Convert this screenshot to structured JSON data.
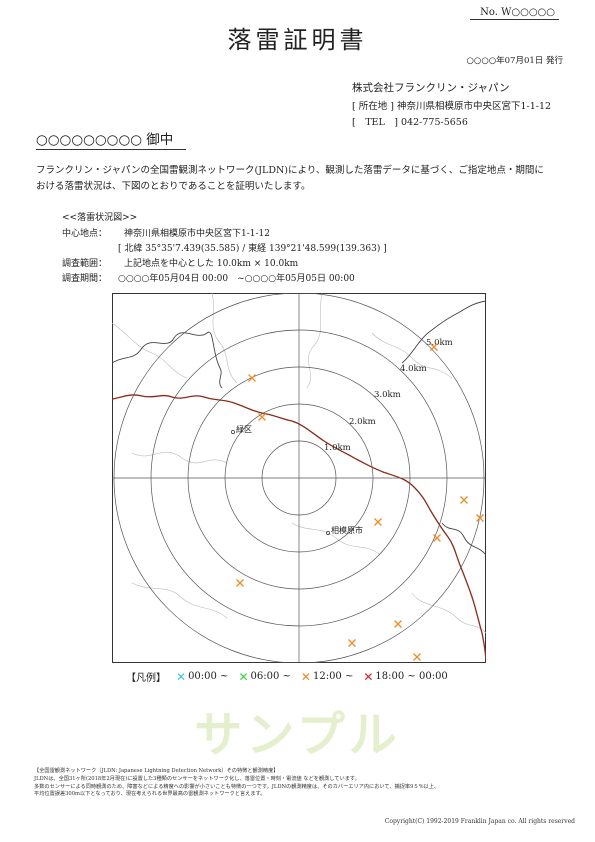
{
  "header": {
    "doc_number": "No. W○○○○○",
    "title": "落雷証明書",
    "issued": "○○○○年07月01日 発行",
    "company": "株式会社フランクリン・ジャパン",
    "address": "[ 所在地 ] 神奈川県相模原市中央区宮下1-1-12",
    "tel": "[　TEL　] 042-775-5656",
    "addressee": "○○○○○○○○○ 御中"
  },
  "body": {
    "line1": "フランクリン・ジャパンの全国雷観測ネットワーク(JLDN)により、観測した落雷データに基づく、ご指定地点・期間に",
    "line2": "おける落雷状況は、下図のとおりであることを証明いたします。"
  },
  "survey": {
    "section_title": "<<落雷状況図>>",
    "center_label": "中心地点：",
    "center_value": "神奈川県相模原市中央区宮下1-1-12",
    "coords": "[ 北緯 35°35'7.439(35.585) / 東経 139°21'48.599(139.363) ]",
    "range_label": "調査範囲：",
    "range_value": "上記地点を中心とした 10.0km × 10.0km",
    "period_label": "調査期間：",
    "period_value": "○○○○年05月04日 00:00　~○○○○年05月05日 00:00"
  },
  "map": {
    "ring_labels": [
      "1.0km",
      "2.0km",
      "3.0km",
      "4.0km",
      "5.0km"
    ],
    "places": [
      "緑区",
      "相模原市"
    ],
    "strike_color": "#f08a24"
  },
  "legend": {
    "title": "【凡例】",
    "items": [
      {
        "label": "00:00 ~",
        "color": "#3cc8e0"
      },
      {
        "label": "06:00 ~",
        "color": "#3cd23c"
      },
      {
        "label": "12:00 ~",
        "color": "#f08a24"
      },
      {
        "label": "18:00 ~ 00:00",
        "color": "#e02020"
      }
    ]
  },
  "watermark": "サンプル",
  "footnotes": {
    "line1": "【全国雷観測ネットワーク（JLDN: Japanese Lightning Detection Network）その特徴と観測精度】",
    "line2": "JLDNは、全国31ヶ所(2018年2月現在)に設置した3種類のセンサーをネットワーク化し、落雷位置・時刻・電流値 などを観測しています。",
    "line3": "多数のセンサーによる同時観測のため、障害などによる精度への影響が小さいことも特徴の一つです。JLDNの観測精度は、そのカバーエリア内において、捕捉率9５%以上、",
    "line4": "平均位置誤差300m以下となっており、現在考えられる世界最高の雷観測ネットワークと言えます。"
  },
  "copyright": "Copyright(C) 1992-2019 Franklin Japan co. All rights reserved"
}
